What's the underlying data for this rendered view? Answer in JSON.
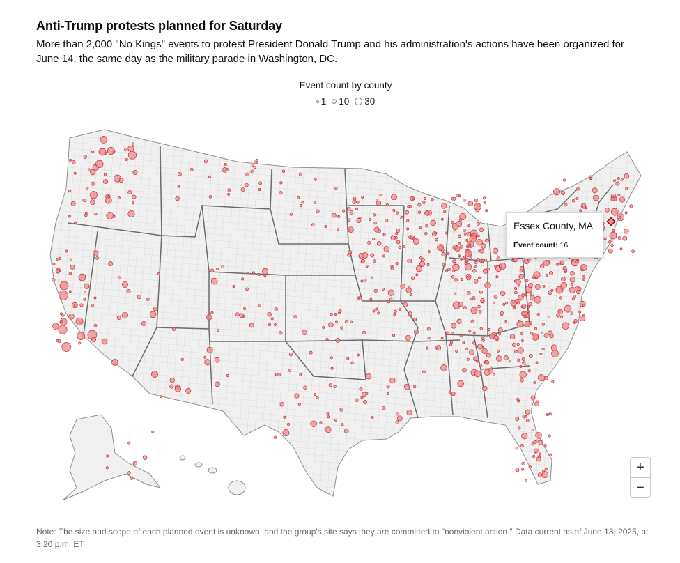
{
  "header": {
    "title": "Anti-Trump protests planned for Saturday",
    "subtitle": "More than 2,000 \"No Kings\" events to protest President Donald Trump and his administration's actions have been organized for June 14, the same day as the military parade in Washington, DC."
  },
  "legend": {
    "title": "Event count by county",
    "items": [
      {
        "label": "1",
        "value": 1
      },
      {
        "label": "10",
        "value": 10
      },
      {
        "label": "30",
        "value": 30
      }
    ]
  },
  "tooltip": {
    "county": "Essex County, MA",
    "label": "Event count:",
    "value": "16"
  },
  "zoom": {
    "in_label": "+",
    "out_label": "−"
  },
  "note": "Note: The size and scope of each planned event is unknown, and the group's site says they are committed to \"nonviolent action.\" Data current as of June 13, 2025, at 3:20 p.m. ET",
  "colors": {
    "land": "#f1f1f1",
    "county_lines": "#c9c9c9",
    "state_lines": "#6b6b6b",
    "bubble_fill": "#f08a8a",
    "bubble_stroke": "#c2303a",
    "highlight": "#7a1212"
  }
}
